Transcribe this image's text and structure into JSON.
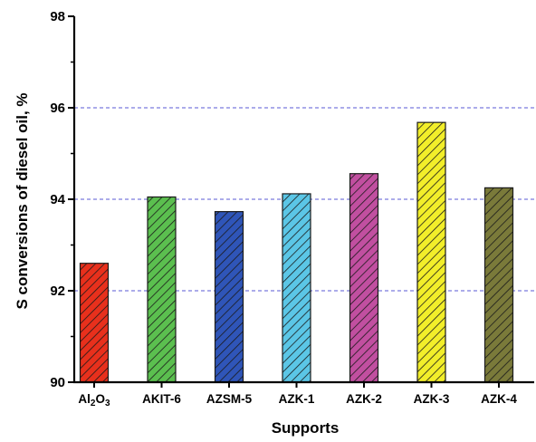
{
  "chart_data": {
    "type": "bar",
    "title": "",
    "xlabel": "Supports",
    "ylabel": "S conversions of diesel oil, %",
    "ylim": [
      90,
      98
    ],
    "yticks": [
      90,
      92,
      94,
      96,
      98
    ],
    "grid": {
      "y": true,
      "style": "dashed",
      "color": "#5a5ad6",
      "values": [
        92,
        94,
        96
      ]
    },
    "legend": "none",
    "categories": [
      "Al2O3",
      "AKIT-6",
      "AZSM-5",
      "AZK-1",
      "AZK-2",
      "AZK-3",
      "AZK-4"
    ],
    "category_display": [
      {
        "main": "Al",
        "sub1": "2",
        "mid": "O",
        "sub2": "3"
      },
      {
        "main": "AKIT-6"
      },
      {
        "main": "AZSM-5"
      },
      {
        "main": "AZK-1"
      },
      {
        "main": "AZK-2"
      },
      {
        "main": "AZK-3"
      },
      {
        "main": "AZK-4"
      }
    ],
    "values": [
      92.6,
      94.05,
      93.73,
      94.12,
      94.56,
      95.68,
      94.25
    ],
    "colors": [
      "#e8301c",
      "#5bbf4f",
      "#2f55b8",
      "#5bc6e6",
      "#c14fa0",
      "#f2ee2a",
      "#7a7a3a"
    ],
    "pattern": "diagonal-hatch"
  }
}
